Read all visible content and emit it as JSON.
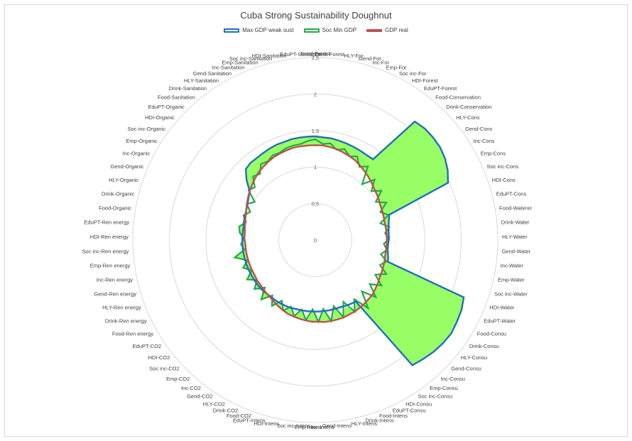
{
  "chart_data": {
    "type": "radar",
    "title": "Cuba Strong Sustainability Doughnut",
    "rlim": [
      0,
      2.5
    ],
    "tick_labels": [
      "0",
      "0,5",
      "1",
      "1,5",
      "2",
      "2,5"
    ],
    "tick_values": [
      0,
      0.5,
      1,
      1.5,
      2,
      2.5
    ],
    "legend_position": "top",
    "categories": [
      "Food-Forest",
      "Drink-Forest",
      "HLY-For",
      "Gend-For",
      "Inc-For",
      "Emp-For",
      "Soc inc-For",
      "HDI-Forest",
      "EduPT-Forest",
      "Food-Conservation",
      "Drink-Conservation",
      "HLY-Cons",
      "Gend-Cons",
      "Inc-Cons",
      "Emp-Cons",
      "Soc inc-Cons",
      "HDI-Cons",
      "EduPT-Cons",
      "Food-Waterer",
      "Drink-Water",
      "HLY-Water",
      "Gend-Water",
      "Inc-Water",
      "Emp-Water",
      "Soc inc-Water",
      "HDI-Water",
      "EduPT-Water",
      "Food-Consu",
      "Drink-Consu",
      "HLY-Consu",
      "Gend-Consu",
      "Inc-Consu",
      "Emp-Consu",
      "Soc inc-Consu",
      "HDI-Consu",
      "EduPT-Consu",
      "Food-Intens",
      "Drink-Intens",
      "HLY-Intens",
      "Gend-Intens",
      "Inc-Intens",
      "Emp-Intens",
      "Soc inc-Intens",
      "HDI-Intens",
      "EduPT-Intens",
      "Food-CO2",
      "Drink-CO2",
      "HLY-CO2",
      "Gend-CO2",
      "Inc-CO2",
      "Emp-CO2",
      "Soc inc-CO2",
      "HDI-CO2",
      "EduPT-CO2",
      "Food-Ren energy",
      "Drink-Ren energy",
      "HLY-Ren energy",
      "Gend-Ren energy",
      "Inc-Ren energy",
      "Emp-Ren energy",
      "Soc inc-Ren energy",
      "HDI-Ren energy",
      "EduPT-Ren energy",
      "Food-Organic",
      "Drink-Organic",
      "HLY-Organic",
      "Gend-Organic",
      "Inc-Organic",
      "Emp-Organic",
      "Soc inc-Organic",
      "HDI-Organic",
      "EduPT-Organic",
      "Food-Sanitation",
      "Drink-Sanitation",
      "HLY-Sanitation",
      "Gend-Sanitation",
      "Inc-Sanitation",
      "Emp-Sanitation",
      "Soc inc-Sanitation",
      "HDI-Sanitation",
      "EduPT-Sanitation"
    ],
    "series": [
      {
        "name": "Max GDP weak sust",
        "color": "#1f6fbf",
        "values": [
          1.42,
          1.41,
          1.41,
          1.4,
          1.39,
          1.38,
          1.37,
          1.36,
          1.36,
          2.12,
          2.14,
          2.14,
          2.13,
          2.1,
          2.05,
          1.98,
          1.07,
          1.04,
          1.02,
          1.01,
          1.01,
          1.0,
          1.0,
          1.02,
          1.04,
          2.18,
          2.22,
          2.24,
          2.26,
          2.25,
          2.23,
          2.2,
          2.17,
          1.01,
          1.0,
          0.99,
          0.98,
          0.98,
          0.98,
          0.98,
          0.98,
          0.98,
          0.98,
          0.98,
          0.98,
          0.99,
          0.99,
          0.99,
          0.99,
          0.99,
          0.99,
          1.0,
          1.0,
          1.0,
          1.0,
          1.0,
          1.0,
          1.0,
          1.0,
          1.0,
          1.0,
          1.0,
          1.0,
          1.0,
          1.01,
          1.02,
          1.03,
          1.05,
          1.08,
          1.12,
          1.25,
          1.36,
          1.38,
          1.38,
          1.39,
          1.4,
          1.41,
          1.41,
          1.42,
          1.42,
          1.42
        ]
      },
      {
        "name": "Soc Min GDP",
        "color": "#22aa44",
        "values": [
          1.38,
          1.32,
          1.34,
          1.27,
          1.31,
          1.24,
          1.28,
          1.17,
          1.24,
          1.0,
          1.16,
          1.02,
          1.13,
          0.98,
          1.1,
          0.97,
          1.06,
          0.92,
          1.03,
          0.96,
          1.01,
          0.94,
          0.99,
          0.92,
          1.02,
          0.95,
          1.08,
          0.95,
          1.1,
          0.96,
          1.14,
          0.95,
          1.18,
          0.97,
          1.12,
          0.93,
          1.12,
          0.94,
          1.13,
          0.95,
          1.12,
          0.95,
          1.1,
          0.97,
          1.08,
          0.97,
          1.06,
          0.95,
          1.08,
          0.96,
          1.1,
          0.95,
          1.07,
          0.97,
          1.08,
          0.96,
          1.06,
          0.97,
          1.13,
          0.98,
          1.02,
          0.98,
          1.04,
          1.06,
          0.98,
          1.04,
          0.97,
          1.06,
          0.98,
          1.14,
          1.1,
          1.22,
          1.18,
          1.28,
          1.26,
          1.3,
          1.29,
          1.32,
          1.33,
          1.33,
          1.36
        ]
      },
      {
        "name": "GDP real",
        "color": "#c0504d",
        "values": [
          1.3,
          1.3,
          1.29,
          1.28,
          1.26,
          1.24,
          1.22,
          1.19,
          1.16,
          1.13,
          1.1,
          1.07,
          1.05,
          1.03,
          1.01,
          1.0,
          0.99,
          0.98,
          0.98,
          0.98,
          0.98,
          0.98,
          0.98,
          0.98,
          0.99,
          1.0,
          1.01,
          1.02,
          1.04,
          1.06,
          1.08,
          1.09,
          1.1,
          1.11,
          1.12,
          1.12,
          1.13,
          1.13,
          1.13,
          1.13,
          1.12,
          1.12,
          1.11,
          1.1,
          1.09,
          1.08,
          1.06,
          1.04,
          1.02,
          1.0,
          0.99,
          0.98,
          0.97,
          0.97,
          0.96,
          0.96,
          0.96,
          0.96,
          0.96,
          0.96,
          0.96,
          0.97,
          0.97,
          0.98,
          0.99,
          1.01,
          1.03,
          1.06,
          1.09,
          1.12,
          1.15,
          1.18,
          1.21,
          1.23,
          1.25,
          1.27,
          1.28,
          1.29,
          1.3,
          1.3,
          1.3
        ]
      }
    ]
  }
}
